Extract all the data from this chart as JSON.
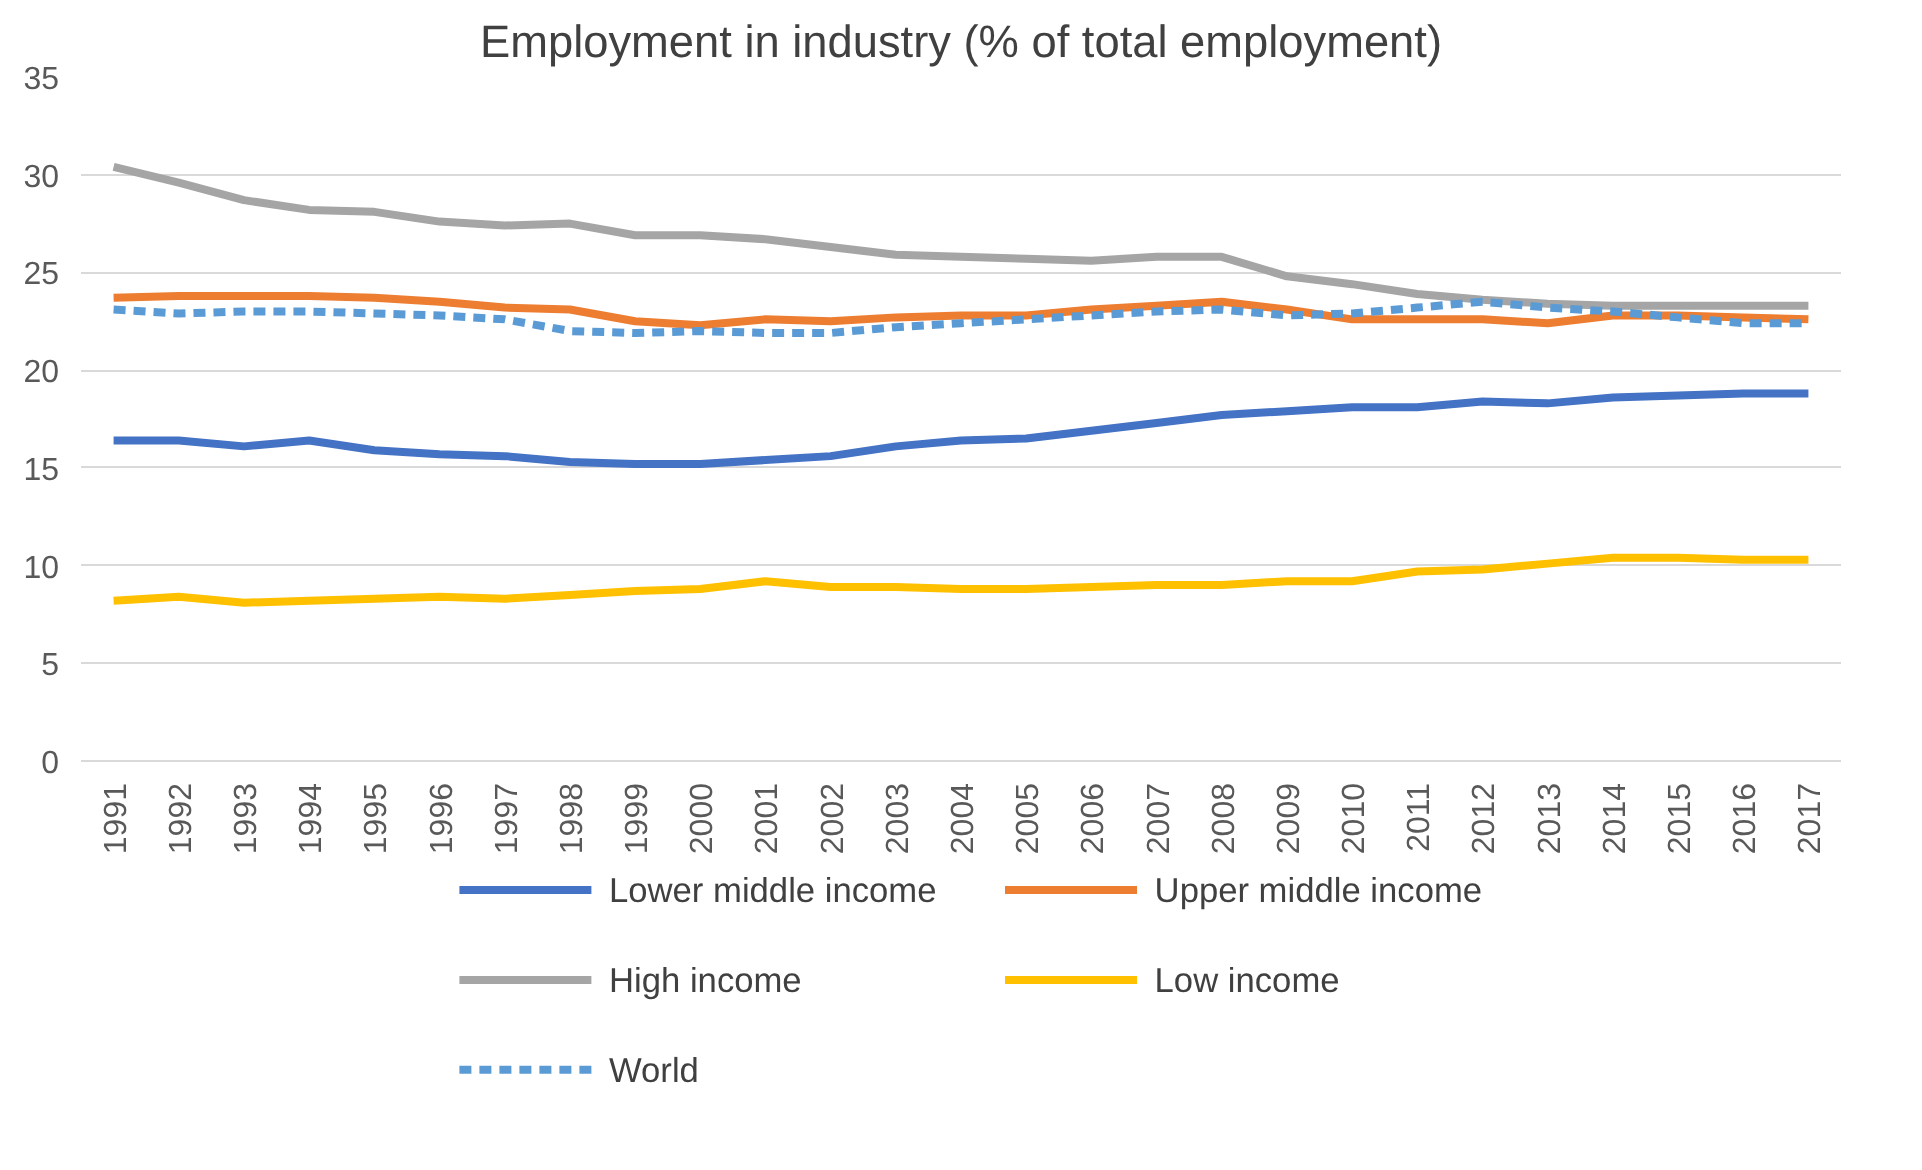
{
  "chart_data": {
    "type": "line",
    "title": "Employment in industry (% of total employment)",
    "categories": [
      "1991",
      "1992",
      "1993",
      "1994",
      "1995",
      "1996",
      "1997",
      "1998",
      "1999",
      "2000",
      "2001",
      "2002",
      "2003",
      "2004",
      "2005",
      "2006",
      "2007",
      "2008",
      "2009",
      "2010",
      "2011",
      "2012",
      "2013",
      "2014",
      "2015",
      "2016",
      "2017"
    ],
    "series": [
      {
        "name": "Lower middle income",
        "color": "#4472c4",
        "values": [
          16.4,
          16.4,
          16.1,
          16.4,
          15.9,
          15.7,
          15.6,
          15.3,
          15.2,
          15.2,
          15.4,
          15.6,
          16.1,
          16.4,
          16.5,
          16.9,
          17.3,
          17.7,
          17.9,
          18.1,
          18.1,
          18.4,
          18.3,
          18.6,
          18.7,
          18.8,
          18.8
        ]
      },
      {
        "name": "Upper middle income",
        "color": "#ed7d31",
        "values": [
          23.7,
          23.8,
          23.8,
          23.8,
          23.7,
          23.5,
          23.2,
          23.1,
          22.5,
          22.3,
          22.6,
          22.5,
          22.7,
          22.8,
          22.8,
          23.1,
          23.3,
          23.5,
          23.1,
          22.6,
          22.6,
          22.6,
          22.4,
          22.8,
          22.8,
          22.7,
          22.6
        ]
      },
      {
        "name": "High income",
        "color": "#a5a5a5",
        "values": [
          30.4,
          29.6,
          28.7,
          28.2,
          28.1,
          27.6,
          27.4,
          27.5,
          26.9,
          26.9,
          26.7,
          26.3,
          25.9,
          25.8,
          25.7,
          25.6,
          25.8,
          25.8,
          24.8,
          24.4,
          23.9,
          23.6,
          23.4,
          23.3,
          23.3,
          23.3,
          23.3
        ]
      },
      {
        "name": "Low income",
        "color": "#ffc000",
        "values": [
          8.2,
          8.4,
          8.1,
          8.2,
          8.3,
          8.4,
          8.3,
          8.5,
          8.7,
          8.8,
          9.2,
          8.9,
          8.9,
          8.8,
          8.8,
          8.9,
          9.0,
          9.0,
          9.2,
          9.2,
          9.7,
          9.8,
          10.1,
          10.4,
          10.4,
          10.3,
          10.3
        ]
      },
      {
        "name": "World",
        "color": "#5b9bd5",
        "line_style": "dashed",
        "values": [
          23.1,
          22.9,
          23.0,
          23.0,
          22.9,
          22.8,
          22.6,
          22.0,
          21.9,
          22.0,
          21.9,
          21.9,
          22.2,
          22.4,
          22.6,
          22.8,
          23.0,
          23.1,
          22.8,
          22.9,
          23.2,
          23.5,
          23.2,
          23.0,
          22.7,
          22.4,
          22.4
        ]
      }
    ],
    "ylim": [
      0,
      35
    ],
    "yticks": [
      0,
      5,
      10,
      15,
      20,
      25,
      30,
      35
    ],
    "grid": "y",
    "legend": "bottom",
    "marker": "none",
    "line_style": "solid"
  }
}
